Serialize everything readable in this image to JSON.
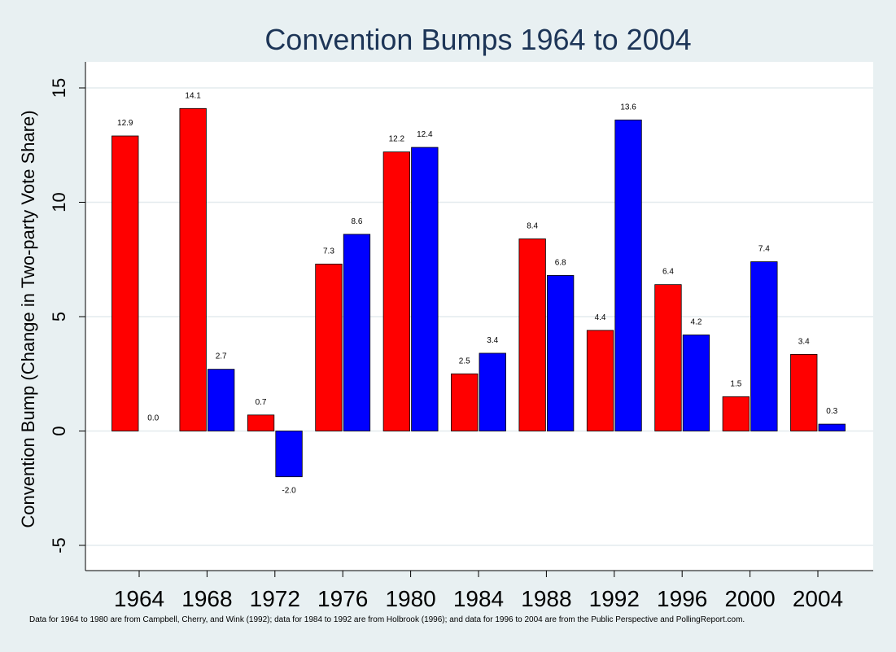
{
  "chart_data": {
    "type": "bar",
    "title": "Convention Bumps 1964 to 2004",
    "xlabel": "",
    "ylabel": "Convention Bump (Change in Two-party Vote Share)",
    "note": "Data for 1964 to 1980 are from Campbell, Cherry, and Wink (1992); data for 1984 to 1992 are from Holbrook (1996); and data for 1996 to 2004 are from  the Public Perspective and PollingReport.com.",
    "categories": [
      "1964",
      "1968",
      "1972",
      "1976",
      "1980",
      "1984",
      "1988",
      "1992",
      "1996",
      "2000",
      "2004"
    ],
    "series": [
      {
        "color": "#ff0000",
        "values": [
          12.9,
          14.1,
          0.7,
          7.3,
          12.2,
          2.5,
          8.4,
          4.4,
          6.4,
          1.5,
          3.35
        ],
        "labels": [
          "12.9",
          "14.1",
          "0.7",
          "7.3",
          "12.2",
          "2.5",
          "8.4",
          "4.4",
          "6.4",
          "1.5",
          "3.4"
        ]
      },
      {
        "color": "#0000ff",
        "values": [
          0.0,
          2.7,
          -2.0,
          8.6,
          12.4,
          3.4,
          6.8,
          13.6,
          4.2,
          7.4,
          0.3
        ],
        "labels": [
          "0.0",
          "2.7",
          "-2.0",
          "8.6",
          "12.4",
          "3.4",
          "6.8",
          "13.6",
          "4.2",
          "7.4",
          "0.3"
        ]
      }
    ],
    "ylim": [
      -6.0,
      16.5
    ],
    "yticks": [
      -5,
      0,
      5,
      10,
      15
    ],
    "ytick_labels": [
      "-5",
      "0",
      "5",
      "10",
      "15"
    ],
    "grid": true,
    "legend": "none"
  }
}
